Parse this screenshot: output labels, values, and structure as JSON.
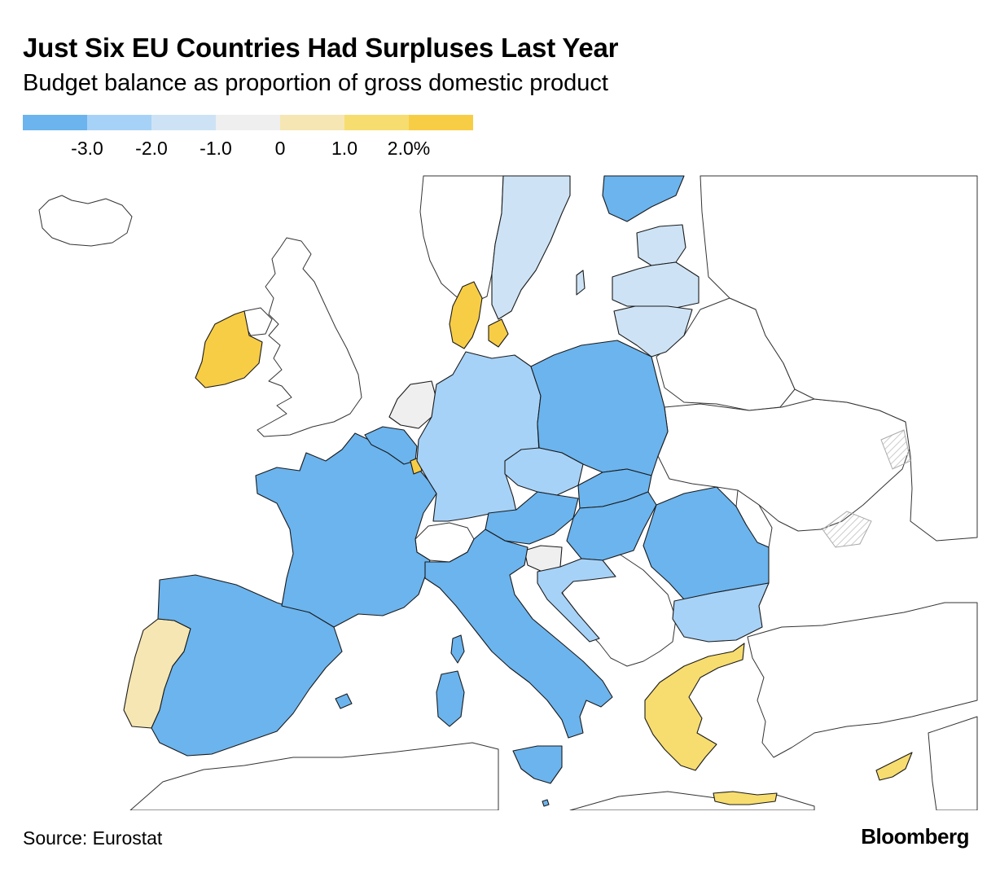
{
  "header": {
    "title": "Just Six EU Countries Had Surpluses Last Year",
    "subtitle": "Budget balance as proportion of gross domestic product"
  },
  "legend": {
    "colors": [
      "#6bb4ee",
      "#a7d2f7",
      "#cde3f5",
      "#efefef",
      "#f5e6b3",
      "#f7dd6f",
      "#f8cd46"
    ],
    "ticks": [
      "-3.0",
      "-2.0",
      "-1.0",
      "0",
      "1.0",
      "2.0%"
    ]
  },
  "map": {
    "colors": {
      "deficit_over_3": "#6bb4ee",
      "deficit_2_3": "#a7d2f7",
      "deficit_1_2": "#cde3f5",
      "balanced": "#efefef",
      "surplus_0_1": "#f5e6b3",
      "surplus_1_2": "#f7dd6f",
      "surplus_over_2": "#f8cd46",
      "non_eu": "#ffffff"
    }
  },
  "footer": {
    "source": "Source: Eurostat",
    "brand": "Bloomberg"
  }
}
